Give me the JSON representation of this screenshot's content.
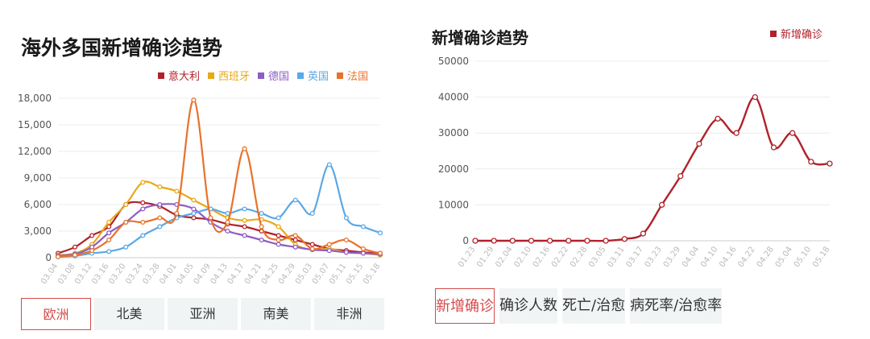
{
  "left": {
    "title": "海外多国新增确诊趋势",
    "tabs": [
      "欧洲",
      "北美",
      "亚洲",
      "南美",
      "非洲"
    ],
    "active_tab": 0
  },
  "right": {
    "title": "新增确诊趋势",
    "tabs": [
      "新增确诊",
      "确诊人数",
      "死亡/治愈",
      "病死率/治愈率"
    ],
    "active_tab": 0
  },
  "chart_data": [
    {
      "type": "line",
      "title": "海外多国新增确诊趋势",
      "categories": [
        "03.04",
        "03.08",
        "03.12",
        "03.16",
        "03.20",
        "03.24",
        "03.28",
        "04.01",
        "04.05",
        "04.09",
        "04.13",
        "04.17",
        "04.21",
        "04.25",
        "04.29",
        "05.03",
        "05.07",
        "05.11",
        "05.15",
        "05.18"
      ],
      "y_ticks": [
        "0",
        "3,000",
        "6,000",
        "9,000",
        "12,000",
        "15,000",
        "18,000"
      ],
      "ylim": [
        0,
        18000
      ],
      "legend_position": "top-right",
      "series": [
        {
          "name": "意大利",
          "color": "#b0222a",
          "values": [
            500,
            1200,
            2500,
            3500,
            6000,
            6200,
            5800,
            4800,
            4500,
            4300,
            3800,
            3500,
            3000,
            2500,
            2000,
            1500,
            1000,
            800,
            600,
            500
          ]
        },
        {
          "name": "西班牙",
          "color": "#e8a817",
          "values": [
            300,
            500,
            1500,
            4000,
            6000,
            8500,
            8000,
            7500,
            6500,
            5500,
            4500,
            4200,
            4300,
            3500,
            1500,
            900,
            1000,
            600,
            500,
            300
          ]
        },
        {
          "name": "德国",
          "color": "#8e5cc7",
          "values": [
            200,
            400,
            1200,
            2800,
            4000,
            5500,
            6000,
            6000,
            5500,
            4000,
            3000,
            2500,
            2000,
            1500,
            1200,
            900,
            800,
            600,
            500,
            400
          ]
        },
        {
          "name": "英国",
          "color": "#5aa8e6",
          "values": [
            100,
            200,
            500,
            700,
            1200,
            2500,
            3500,
            4500,
            5000,
            5500,
            5000,
            5500,
            5000,
            4500,
            6500,
            5000,
            10500,
            4500,
            3500,
            2800
          ]
        },
        {
          "name": "法国",
          "color": "#e8722a",
          "values": [
            100,
            300,
            800,
            2000,
            4000,
            4000,
            4500,
            5000,
            17800,
            4500,
            4000,
            12300,
            3500,
            2000,
            2500,
            1000,
            1500,
            2000,
            1000,
            500
          ]
        }
      ]
    },
    {
      "type": "line",
      "title": "新增确诊趋势",
      "categories": [
        "01.23",
        "01.29",
        "02.04",
        "02.10",
        "02.16",
        "02.22",
        "02.28",
        "03.05",
        "03.11",
        "03.17",
        "03.23",
        "03.29",
        "04.04",
        "04.10",
        "04.16",
        "04.22",
        "04.28",
        "05.04",
        "05.10",
        "05.18"
      ],
      "y_ticks": [
        "0",
        "10000",
        "20000",
        "30000",
        "40000",
        "50000"
      ],
      "ylim": [
        0,
        50000
      ],
      "legend_position": "top-right",
      "series": [
        {
          "name": "新增确诊",
          "color": "#b0222a",
          "values": [
            0,
            0,
            0,
            0,
            0,
            0,
            0,
            0,
            500,
            2000,
            10000,
            18000,
            27000,
            34000,
            30000,
            40000,
            26000,
            30000,
            22000,
            21500
          ]
        }
      ]
    }
  ]
}
